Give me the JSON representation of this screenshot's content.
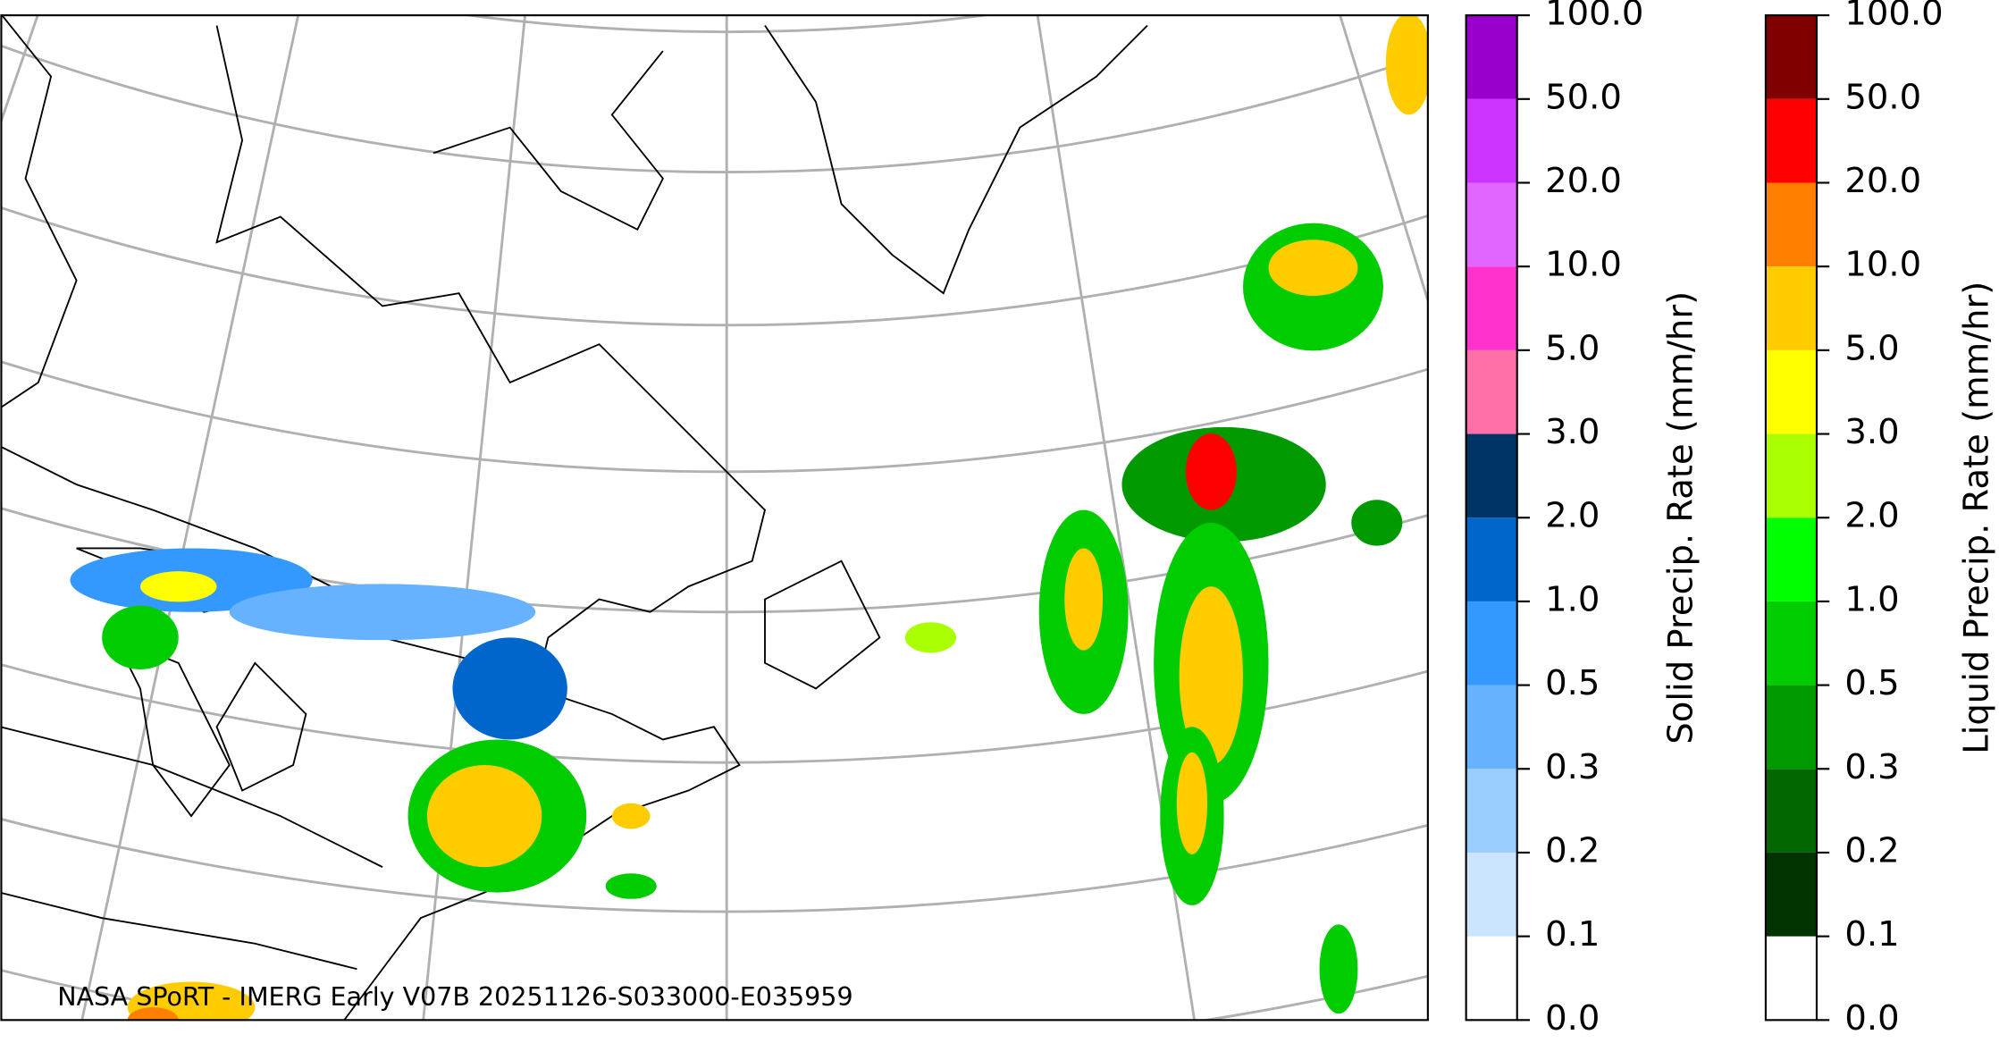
{
  "caption": "NASA SPoRT - IMERG Early V07B 20251126-S033000-E035959",
  "colorbars": [
    {
      "label": "Solid Precip. Rate (mm/hr)",
      "ticks": [
        {
          "value": 0,
          "label": "0.0"
        },
        {
          "value": 0.1,
          "label": "0.1"
        },
        {
          "value": 0.2,
          "label": "0.2"
        },
        {
          "value": 0.3,
          "label": "0.3"
        },
        {
          "value": 0.5,
          "label": "0.5"
        },
        {
          "value": 1,
          "label": "1.0"
        },
        {
          "value": 2,
          "label": "2.0"
        },
        {
          "value": 3,
          "label": "3.0"
        },
        {
          "value": 5,
          "label": "5.0"
        },
        {
          "value": 10,
          "label": "10.0"
        },
        {
          "value": 20,
          "label": "20.0"
        },
        {
          "value": 50,
          "label": "50.0"
        },
        {
          "value": 100,
          "label": "100.0"
        }
      ],
      "colors": [
        "#ffffff",
        "#cce5ff",
        "#99ccff",
        "#66b2ff",
        "#3399ff",
        "#0066cc",
        "#003366",
        "#ff6fa8",
        "#ff33cc",
        "#e066ff",
        "#cc33ff",
        "#9900cc"
      ]
    },
    {
      "label": "Liquid Precip. Rate (mm/hr)",
      "ticks": [
        {
          "value": 0,
          "label": "0.0"
        },
        {
          "value": 0.1,
          "label": "0.1"
        },
        {
          "value": 0.2,
          "label": "0.2"
        },
        {
          "value": 0.3,
          "label": "0.3"
        },
        {
          "value": 0.5,
          "label": "0.5"
        },
        {
          "value": 1,
          "label": "1.0"
        },
        {
          "value": 2,
          "label": "2.0"
        },
        {
          "value": 3,
          "label": "3.0"
        },
        {
          "value": 5,
          "label": "5.0"
        },
        {
          "value": 10,
          "label": "10.0"
        },
        {
          "value": 20,
          "label": "20.0"
        },
        {
          "value": 50,
          "label": "50.0"
        },
        {
          "value": 100,
          "label": "100.0"
        }
      ],
      "colors": [
        "#ffffff",
        "#003300",
        "#006600",
        "#009900",
        "#00cc00",
        "#00ff00",
        "#aaff00",
        "#ffff00",
        "#ffcc00",
        "#ff8000",
        "#ff0000",
        "#800000",
        "#330000"
      ]
    }
  ]
}
